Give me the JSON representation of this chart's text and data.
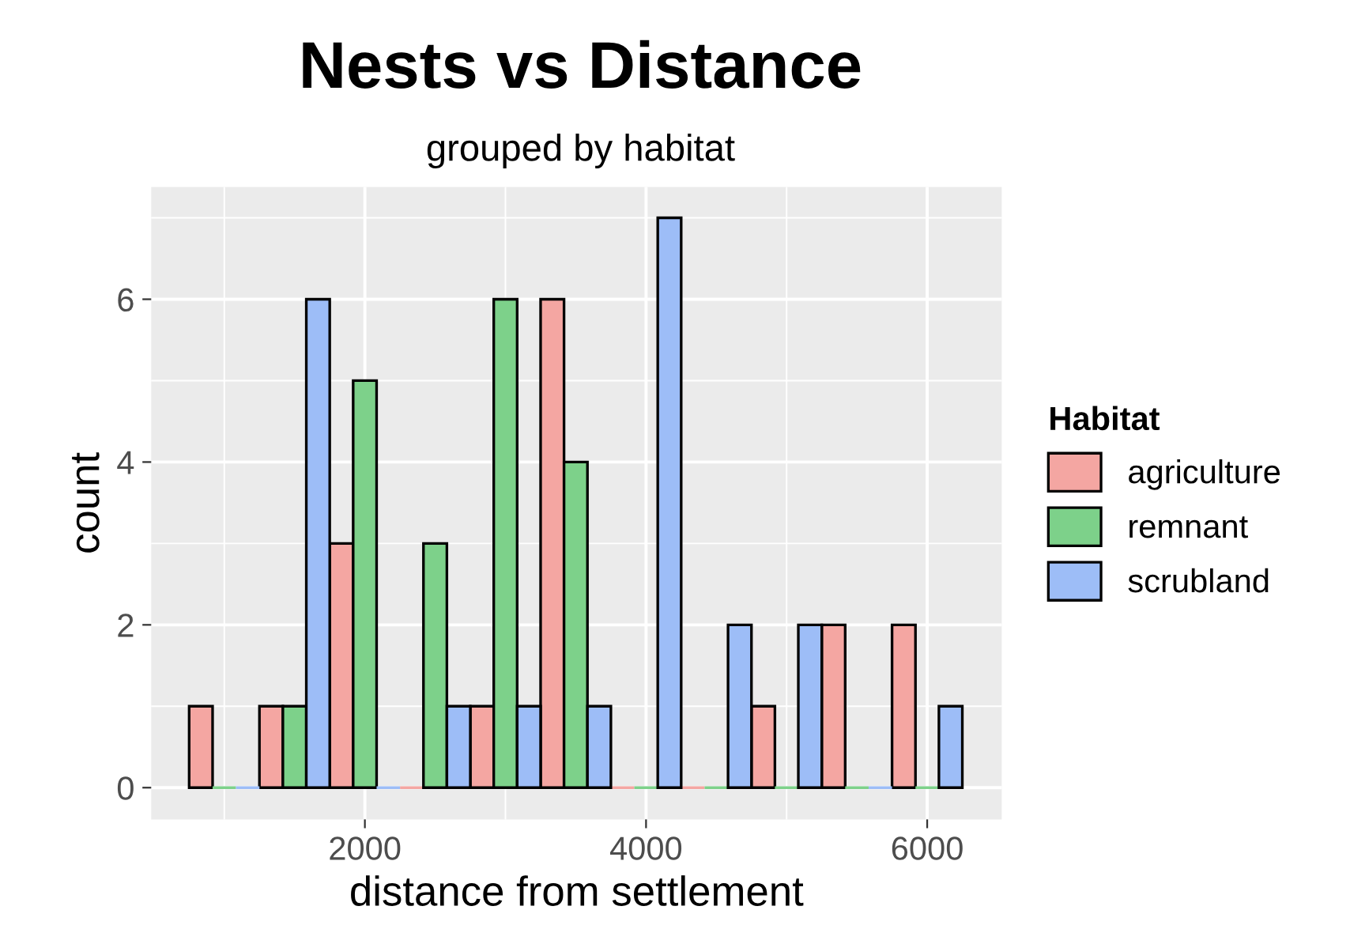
{
  "chart_data": {
    "type": "histogram",
    "title": "Nests vs Distance",
    "subtitle": "grouped by habitat",
    "xlabel": "distance from settlement",
    "ylabel": "count",
    "legend_title": "Habitat",
    "bins": [
      750,
      1250,
      1750,
      2250,
      2750,
      3250,
      3750,
      4250,
      4750,
      5250,
      5750,
      6250
    ],
    "series": [
      {
        "name": "agriculture",
        "color": "#f4a6a2",
        "values": [
          1,
          1,
          3,
          0,
          1,
          6,
          0,
          0,
          1,
          2,
          2
        ]
      },
      {
        "name": "remnant",
        "color": "#7dd18a",
        "values": [
          0,
          1,
          5,
          3,
          6,
          4,
          0,
          0,
          0,
          0,
          0
        ]
      },
      {
        "name": "scrubland",
        "color": "#9dbdf7",
        "values": [
          0,
          6,
          0,
          1,
          1,
          1,
          7,
          2,
          2,
          0,
          1
        ]
      }
    ],
    "xlim": [
      480,
      6530
    ],
    "ylim": [
      -0.39,
      7.38
    ],
    "xticks": [
      2000,
      4000,
      6000
    ],
    "yticks": [
      0,
      2,
      4,
      6
    ],
    "grid": true,
    "legend": "right"
  }
}
